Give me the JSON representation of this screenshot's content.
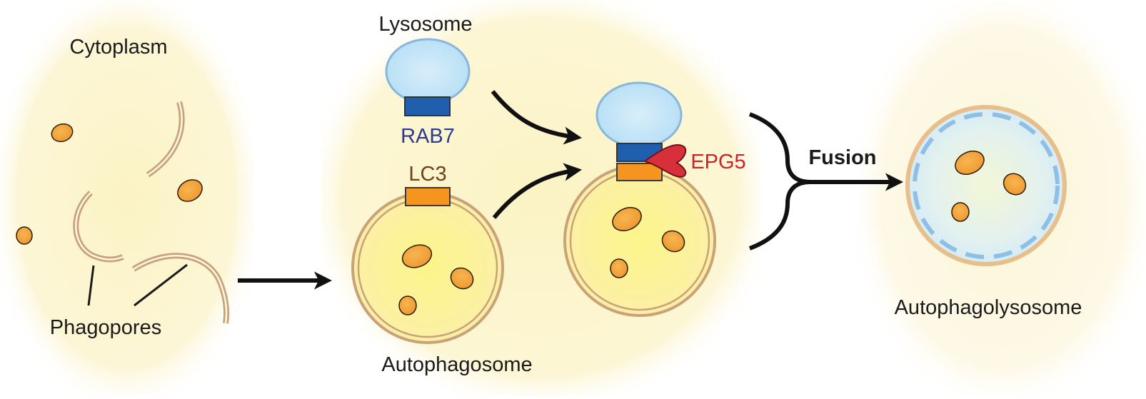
{
  "labels": {
    "cytoplasm": "Cytoplasm",
    "phagopores": "Phagopores",
    "lysosome": "Lysosome",
    "rab7": "RAB7",
    "lc3": "LC3",
    "autophagosome": "Autophagosome",
    "epg5": "EPG5",
    "fusion": "Fusion",
    "autophagolysosome": "Autophagolysosome"
  },
  "colors": {
    "panel_glow": "#fbf5c6",
    "membrane": "#c9a27a",
    "lysosome_fill": "#bfe3f7",
    "lysosome_edge": "#8ab6de",
    "rab7": "#1f5fae",
    "lc3": "#f3951f",
    "cargo": "#f5a63c",
    "epg5": "#d7303a",
    "rab7_text": "#2c3a8f",
    "lc3_text": "#6b4318",
    "epg5_text": "#c8232f",
    "arrow": "#111111"
  }
}
